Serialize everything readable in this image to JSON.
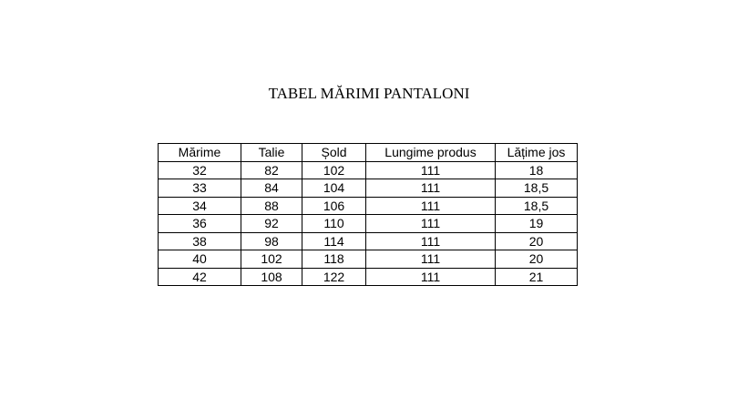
{
  "title": "TABEL MĂRIMI PANTALONI",
  "table": {
    "headers": [
      "Mărime",
      "Talie",
      "Șold",
      "Lungime produs",
      "Lățime jos"
    ],
    "rows": [
      [
        "32",
        "82",
        "102",
        "111",
        "18"
      ],
      [
        "33",
        "84",
        "104",
        "111",
        "18,5"
      ],
      [
        "34",
        "88",
        "106",
        "111",
        "18,5"
      ],
      [
        "36",
        "92",
        "110",
        "111",
        "19"
      ],
      [
        "38",
        "98",
        "114",
        "111",
        "20"
      ],
      [
        "40",
        "102",
        "118",
        "111",
        "20"
      ],
      [
        "42",
        "108",
        "122",
        "111",
        "21"
      ]
    ]
  }
}
